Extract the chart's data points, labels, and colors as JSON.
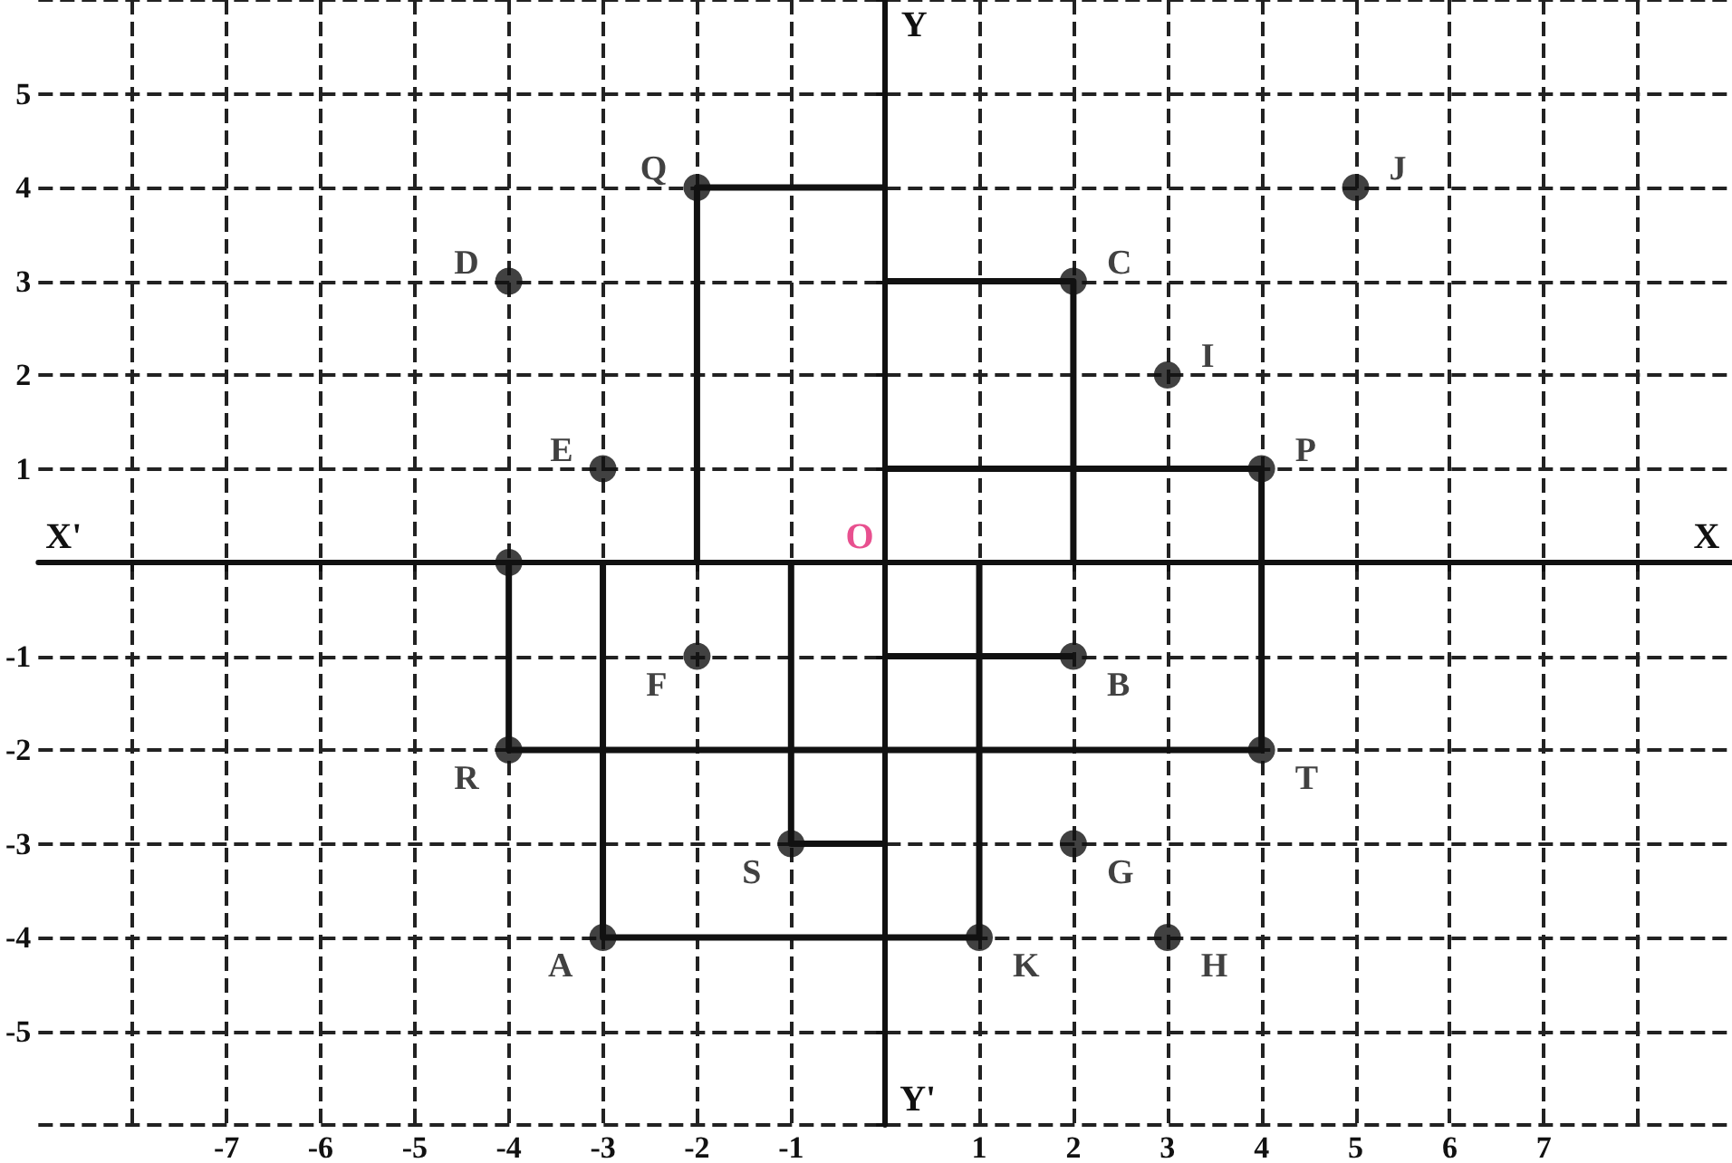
{
  "chart_data": {
    "type": "scatter",
    "xlim": [
      -9,
      9
    ],
    "ylim": [
      -6,
      6
    ],
    "xticks": [
      {
        "value": -8,
        "label": null
      },
      -7,
      -6,
      -5,
      -4,
      -3,
      -2,
      -1,
      {
        "value": 0,
        "label": null
      },
      1,
      2,
      3,
      4,
      5,
      6,
      7,
      {
        "value": 8,
        "label": null
      }
    ],
    "yticks": [
      {
        "value": -6,
        "label": null
      },
      -5,
      -4,
      -3,
      -2,
      -1,
      {
        "value": 0,
        "label": null
      },
      1,
      2,
      3,
      4,
      5,
      {
        "value": 6,
        "label": null
      }
    ],
    "grid": true,
    "marker": "circle",
    "series": [
      {
        "type": "line",
        "color": "#111111",
        "line_style": "solid",
        "marker": "none",
        "x": [
          -2,
          -2,
          0,
          null,
          0,
          2,
          2,
          null,
          0,
          2,
          null,
          0,
          4,
          4,
          null,
          -4,
          -4,
          4,
          4,
          null,
          -1,
          -1,
          0,
          null,
          -3,
          -3,
          1,
          1
        ],
        "values": [
          0,
          4,
          4,
          null,
          3,
          3,
          0,
          null,
          -1,
          -1,
          null,
          1,
          1,
          0,
          null,
          0,
          -2,
          -2,
          0,
          null,
          0,
          -3,
          -3,
          null,
          0,
          -4,
          -4,
          0
        ]
      },
      {
        "type": "scatter",
        "color": "#111111",
        "x": [
          -2,
          -4,
          -3,
          5,
          2,
          3,
          4,
          -2,
          2,
          -4,
          4,
          -1,
          2,
          -3,
          1,
          3,
          -4
        ],
        "values": [
          4,
          3,
          1,
          4,
          3,
          2,
          1,
          -1,
          -1,
          -2,
          -2,
          -3,
          -3,
          -4,
          -4,
          -4,
          0
        ],
        "value_labels": [
          "Q",
          "D",
          "E",
          "J",
          "C",
          "I",
          "P",
          "F",
          "B",
          "R",
          "T",
          "S",
          "G",
          "A",
          "K",
          "H",
          null
        ]
      }
    ],
    "annotations": [
      "X'",
      "X",
      "Y",
      "Y'",
      "O"
    ]
  }
}
